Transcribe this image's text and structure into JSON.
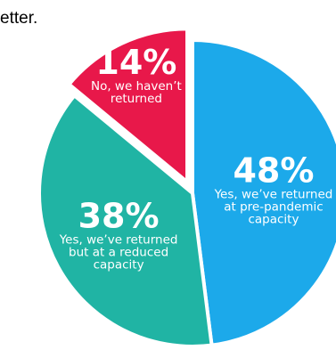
{
  "caption_fragment": "etter.",
  "chart_data": {
    "type": "pie",
    "title": "",
    "slices": [
      {
        "label": "Yes, we've returned at pre-pandemic capacity",
        "label_lines": [
          "Yes, we’ve returned",
          "at pre-pandemic",
          "capacity"
        ],
        "value": 48,
        "value_label": "48%",
        "color": "#1ca9ea",
        "exploded": false
      },
      {
        "label": "Yes, we've returned but at a reduced capacity",
        "label_lines": [
          "Yes, we’ve returned",
          "but at a reduced",
          "capacity"
        ],
        "value": 38,
        "value_label": "38%",
        "color": "#20b4a4",
        "exploded": false
      },
      {
        "label": "No, we haven't returned",
        "label_lines": [
          "No, we haven’t",
          "returned"
        ],
        "value": 14,
        "value_label": "14%",
        "color": "#e8184a",
        "exploded": true
      }
    ]
  }
}
